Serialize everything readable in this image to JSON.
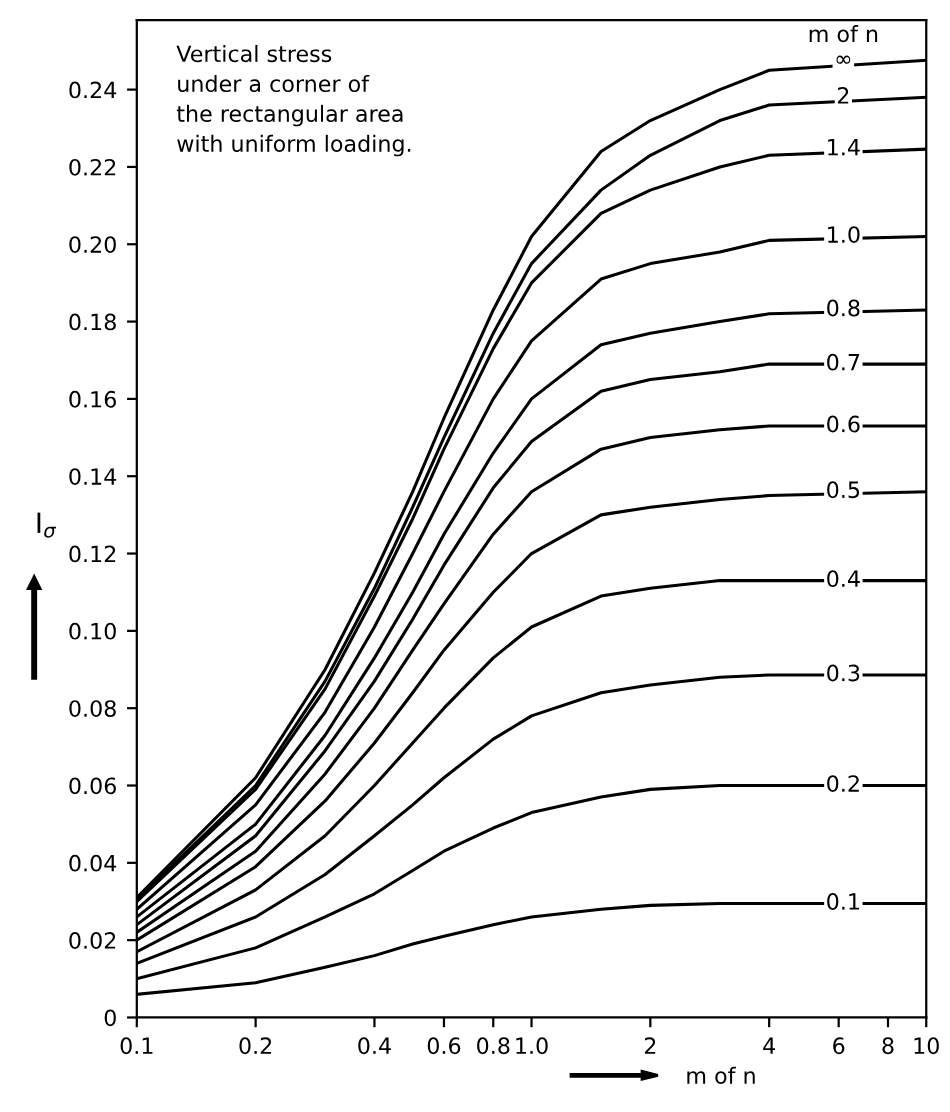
{
  "chart_data": {
    "type": "line",
    "xlabel": "m of n",
    "ylabel": "I$_{σ}$",
    "log": "x",
    "x": [
      0.1,
      0.2,
      0.3,
      0.4,
      0.5,
      0.6,
      0.8,
      1.0,
      1.5,
      2,
      3,
      4,
      10
    ],
    "series": [
      {
        "name": "0.1",
        "color": "#000000",
        "values": [
          0.006,
          0.009,
          0.013,
          0.016,
          0.019,
          0.021,
          0.024,
          0.026,
          0.028,
          0.029,
          0.0295,
          0.0295,
          0.0295
        ]
      },
      {
        "name": "0.2",
        "color": "#000000",
        "values": [
          0.01,
          0.018,
          0.026,
          0.032,
          0.038,
          0.043,
          0.049,
          0.053,
          0.057,
          0.059,
          0.06,
          0.06,
          0.06
        ]
      },
      {
        "name": "0.3",
        "color": "#000000",
        "values": [
          0.014,
          0.026,
          0.037,
          0.047,
          0.055,
          0.062,
          0.072,
          0.078,
          0.084,
          0.086,
          0.088,
          0.0886,
          0.0886
        ]
      },
      {
        "name": "0.4",
        "color": "#000000",
        "values": [
          0.017,
          0.033,
          0.047,
          0.06,
          0.071,
          0.08,
          0.093,
          0.101,
          0.109,
          0.111,
          0.113,
          0.113,
          0.113
        ]
      },
      {
        "name": "0.5",
        "color": "#000000",
        "values": [
          0.02,
          0.039,
          0.056,
          0.071,
          0.084,
          0.095,
          0.11,
          0.12,
          0.13,
          0.132,
          0.134,
          0.135,
          0.136
        ]
      },
      {
        "name": "0.6",
        "color": "#000000",
        "values": [
          0.022,
          0.043,
          0.063,
          0.08,
          0.095,
          0.107,
          0.125,
          0.136,
          0.147,
          0.15,
          0.152,
          0.153,
          0.153
        ]
      },
      {
        "name": "0.7",
        "color": "#000000",
        "values": [
          0.024,
          0.047,
          0.069,
          0.087,
          0.103,
          0.117,
          0.137,
          0.149,
          0.162,
          0.165,
          0.167,
          0.169,
          0.169
        ]
      },
      {
        "name": "0.8",
        "color": "#000000",
        "values": [
          0.026,
          0.05,
          0.073,
          0.093,
          0.11,
          0.125,
          0.146,
          0.16,
          0.174,
          0.177,
          0.18,
          0.182,
          0.183
        ]
      },
      {
        "name": "1.0",
        "color": "#000000",
        "values": [
          0.028,
          0.055,
          0.079,
          0.101,
          0.12,
          0.136,
          0.16,
          0.175,
          0.191,
          0.195,
          0.198,
          0.201,
          0.202
        ]
      },
      {
        "name": "1.4",
        "color": "#000000",
        "values": [
          0.03,
          0.059,
          0.085,
          0.109,
          0.129,
          0.147,
          0.173,
          0.19,
          0.208,
          0.214,
          0.22,
          0.223,
          0.2246
        ]
      },
      {
        "name": "2",
        "color": "#000000",
        "values": [
          0.0305,
          0.06,
          0.087,
          0.111,
          0.132,
          0.15,
          0.177,
          0.195,
          0.214,
          0.223,
          0.232,
          0.236,
          0.238
        ]
      },
      {
        "name": "∞",
        "color": "#000000",
        "values": [
          0.031,
          0.062,
          0.09,
          0.115,
          0.136,
          0.155,
          0.183,
          0.202,
          0.224,
          0.232,
          0.24,
          0.245,
          0.2476
        ]
      }
    ],
    "xlim": [
      0.1,
      10
    ],
    "ylim": [
      0,
      0.258
    ],
    "xticks": [
      0.1,
      0.2,
      0.4,
      0.6,
      0.8,
      {
        "value": 1,
        "label": "1.0"
      },
      2,
      4,
      6,
      8,
      10
    ],
    "yticks": [
      0,
      0.02,
      0.04,
      0.06,
      0.08,
      {
        "value": 0.1,
        "label": "0.10"
      },
      0.12,
      0.14,
      0.16,
      0.18,
      {
        "value": 0.2,
        "label": "0.20"
      },
      0.22,
      0.24
    ],
    "annotations": [
      "Vertical stress\nunder a corner of\nthe rectangular area\nwith uniform loading.",
      "m of n"
    ],
    "grid": false,
    "legend": false,
    "line_style": "solid",
    "marker": "none"
  }
}
